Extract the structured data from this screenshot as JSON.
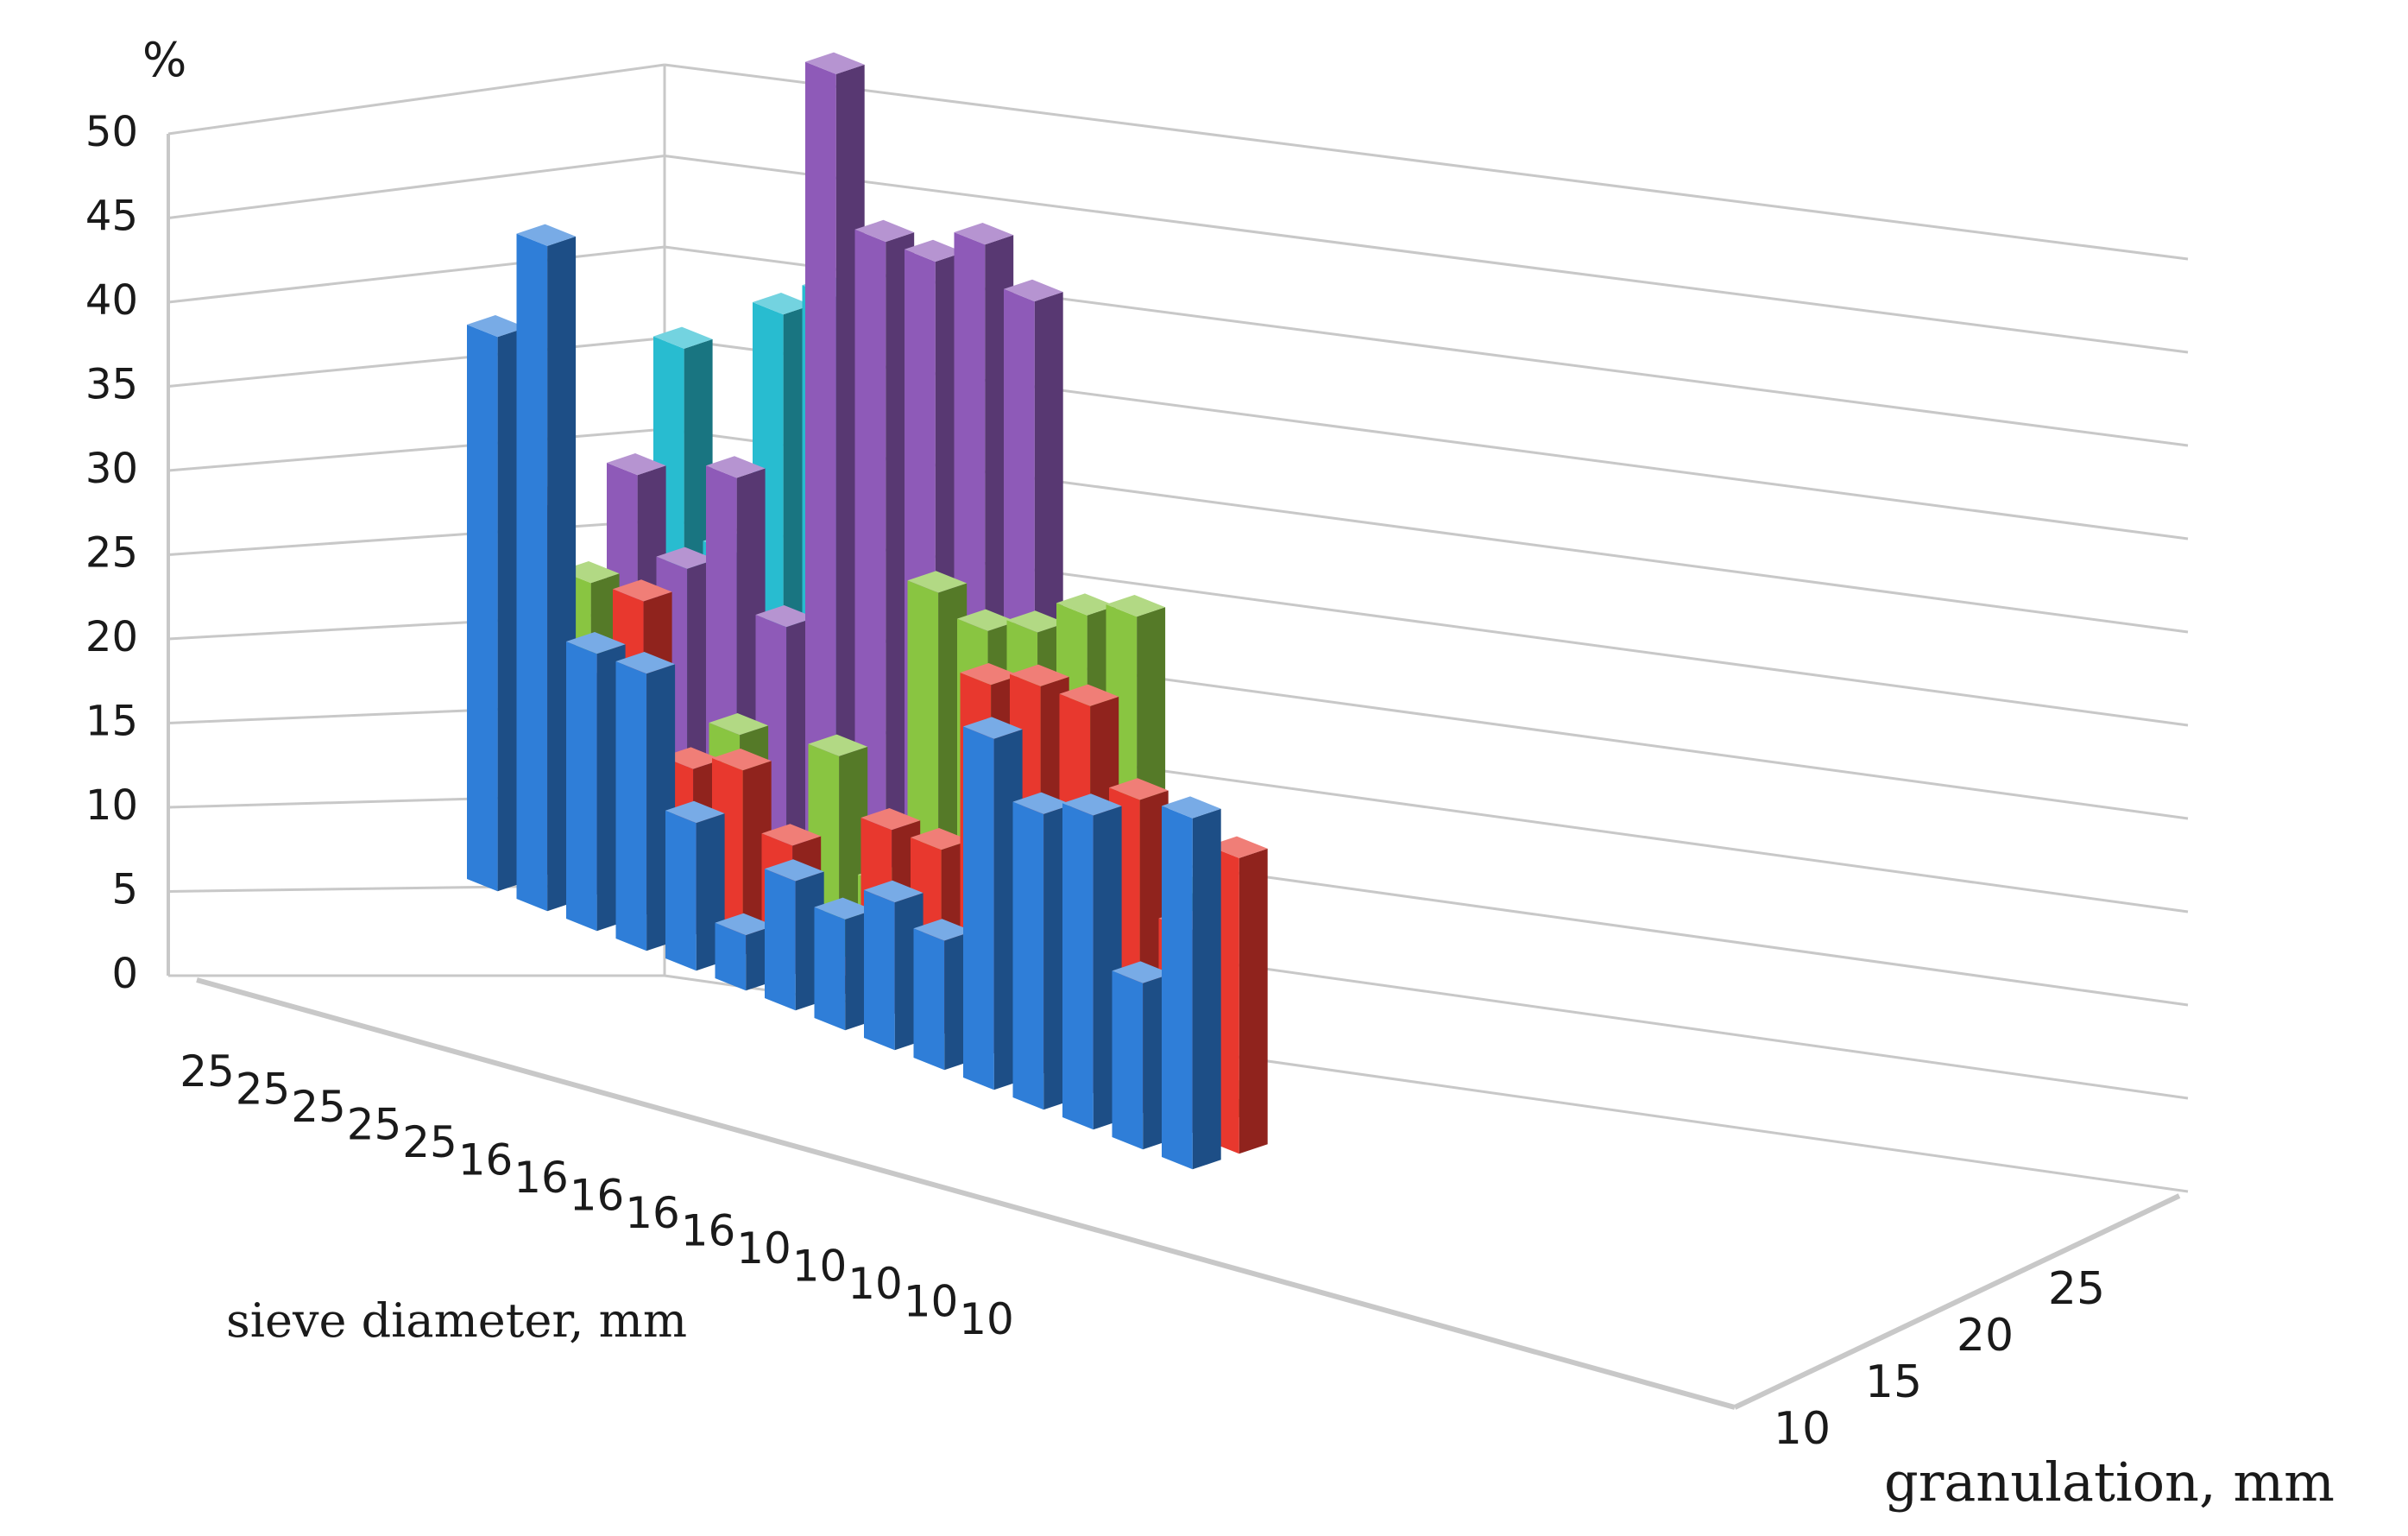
{
  "chart_data": {
    "type": "bar3d",
    "title": "",
    "ylabel": "%",
    "xlabel": "sieve diameter, mm",
    "zlabel": "granulation, mm",
    "ylim": [
      0,
      50
    ],
    "yticks": [
      0,
      5,
      10,
      15,
      20,
      25,
      30,
      35,
      40,
      45,
      50
    ],
    "categories": [
      "25",
      "25",
      "25",
      "25",
      "25",
      "16",
      "16",
      "16",
      "16",
      "16",
      "10",
      "10",
      "10",
      "10",
      "10"
    ],
    "depth_categories": [
      "10",
      "15",
      "20",
      "25"
    ],
    "series": [
      {
        "color": "#2f7ed8",
        "values": [
          30,
          36,
          15,
          15,
          8,
          3,
          7,
          6,
          8,
          7,
          19,
          16,
          17,
          9,
          19
        ]
      },
      {
        "color": "#e8382e",
        "values": [
          20,
          12,
          17,
          9,
          10,
          7,
          1,
          10,
          10,
          20,
          21,
          21,
          17,
          11,
          16
        ]
      },
      {
        "color": "#89c541",
        "values": [
          15,
          0,
          0,
          10,
          3,
          11,
          5,
          22,
          21,
          22,
          24,
          25,
          11,
          1,
          0
        ]
      },
      {
        "color": "#8e5ab8",
        "values": [
          20,
          16,
          22,
          15,
          46,
          38,
          38,
          40,
          38,
          0,
          0,
          0,
          0,
          0,
          0
        ]
      },
      {
        "color": "#28bcd0",
        "values": [
          26,
          16,
          30,
          32,
          0,
          0,
          0,
          0,
          0,
          0,
          0,
          0,
          0,
          0,
          0
        ]
      }
    ],
    "grid": true,
    "legend": "none"
  },
  "colors": {
    "wall_line": "#c8c8c8",
    "text": "#1a1a1a"
  }
}
